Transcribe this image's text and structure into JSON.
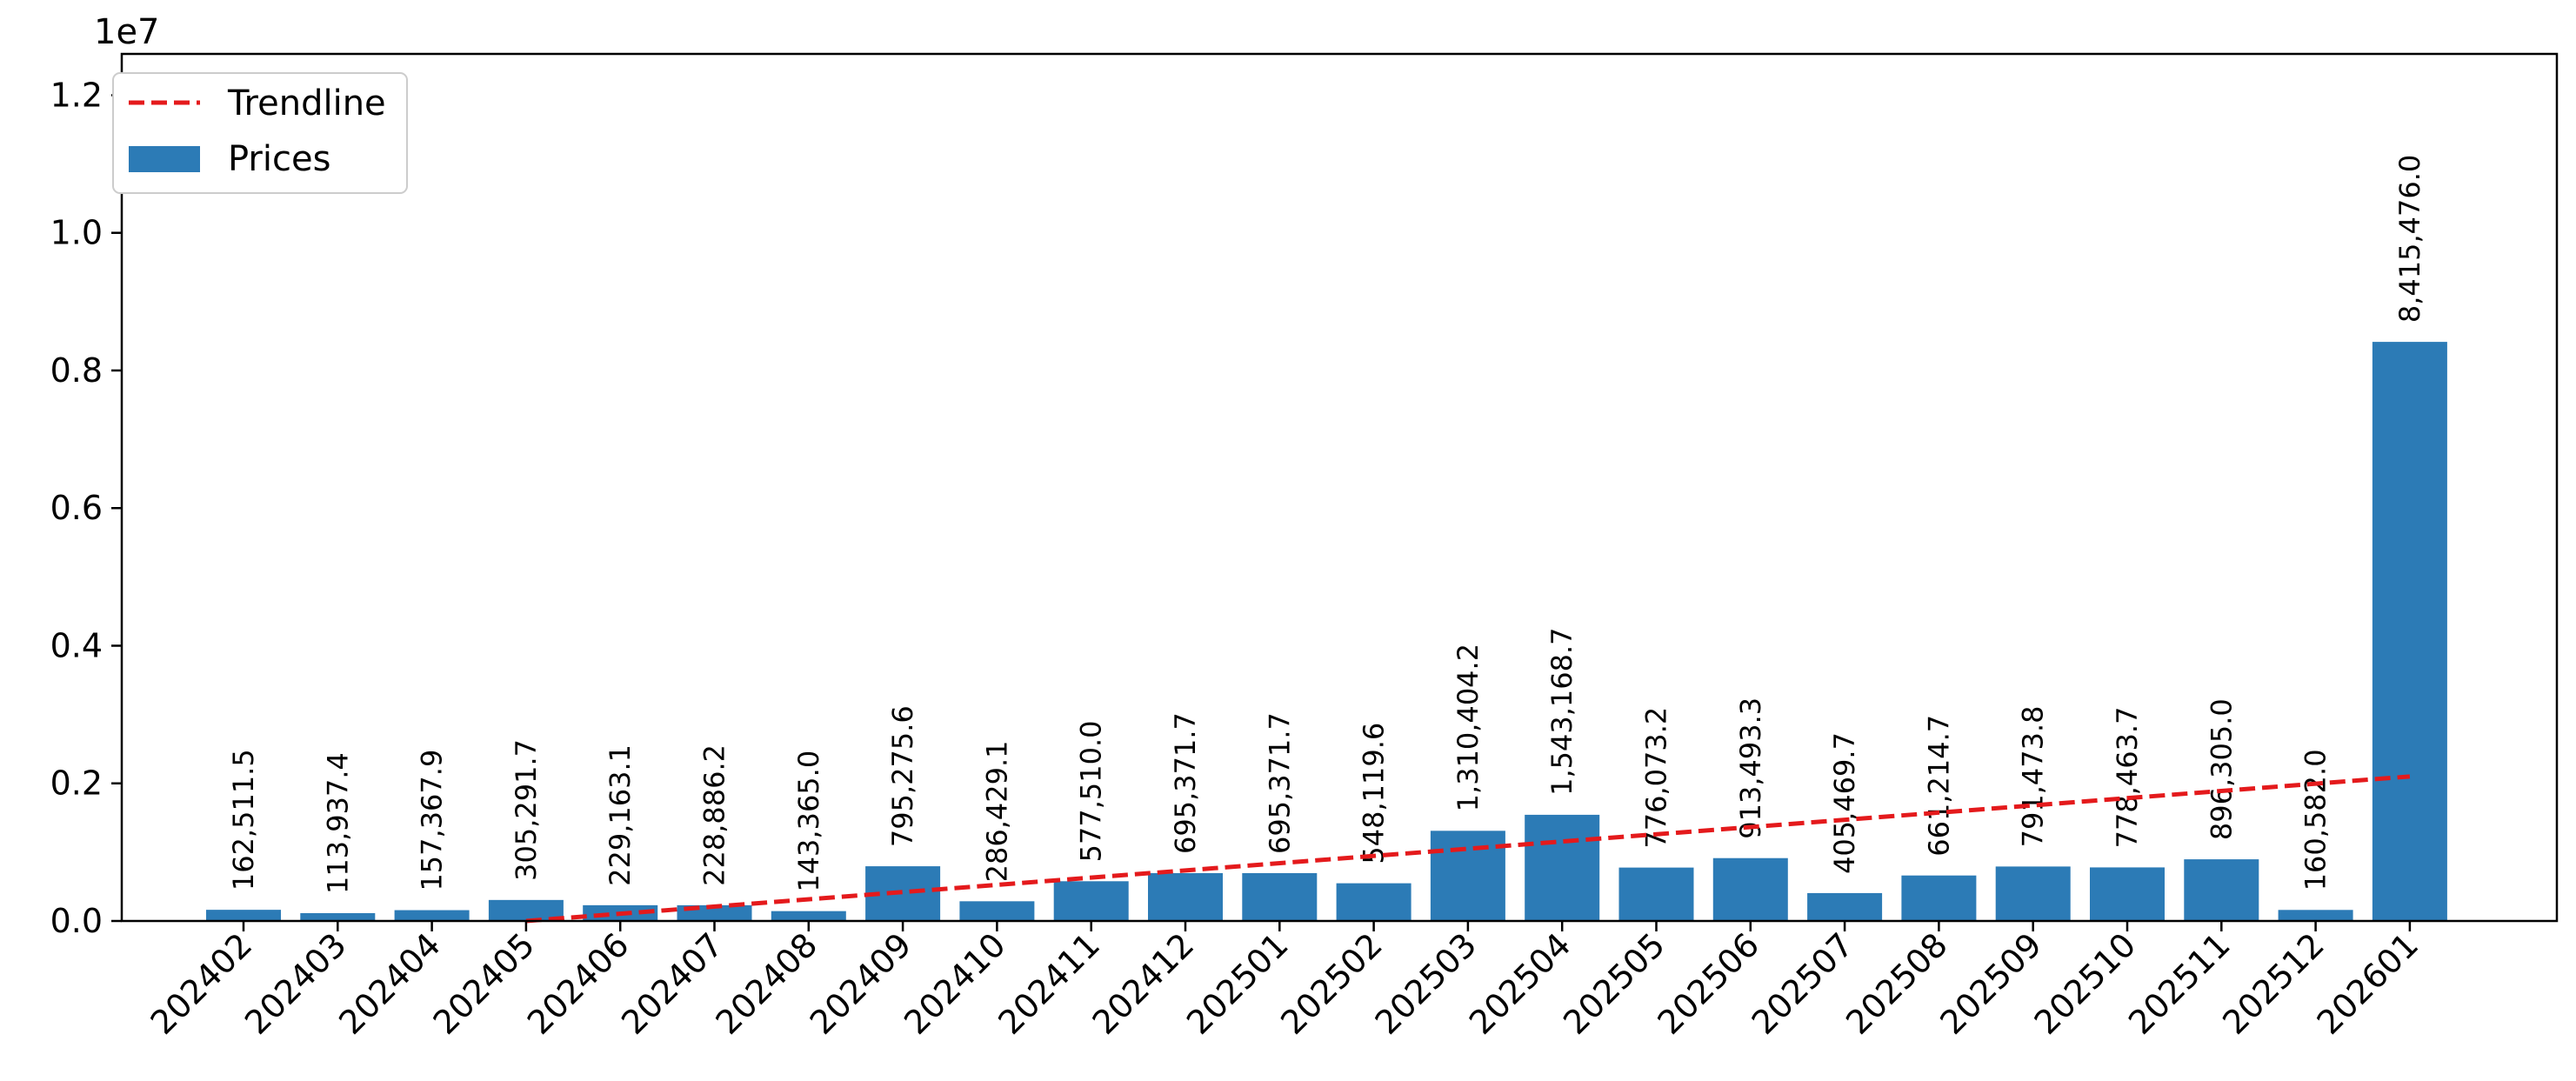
{
  "chart_data": {
    "type": "bar",
    "categories": [
      "202402",
      "202403",
      "202404",
      "202405",
      "202406",
      "202407",
      "202408",
      "202409",
      "202410",
      "202411",
      "202412",
      "202501",
      "202502",
      "202503",
      "202504",
      "202505",
      "202506",
      "202507",
      "202508",
      "202509",
      "202510",
      "202511",
      "202512",
      "202601"
    ],
    "series": [
      {
        "name": "Prices",
        "values": [
          162511.5,
          113937.4,
          157367.9,
          305291.7,
          229163.1,
          228886.2,
          143365.0,
          795275.6,
          286429.1,
          577510.0,
          695371.7,
          695371.7,
          548119.6,
          1310404.2,
          1543168.7,
          776073.2,
          913493.3,
          405469.7,
          661214.7,
          791473.8,
          778463.7,
          896305.0,
          160582.0,
          8415476.0
        ],
        "value_labels": [
          "162,511.5",
          "113,937.4",
          "157,367.9",
          "305,291.7",
          "229,163.1",
          "228,886.2",
          "143,365.0",
          "795,275.6",
          "286,429.1",
          "577,510.0",
          "695,371.7",
          "695,371.7",
          "548,119.6",
          "1,310,404.2",
          "1,543,168.7",
          "776,073.2",
          "913,493.3",
          "405,469.7",
          "661,214.7",
          "791,473.8",
          "778,463.7",
          "896,305.0",
          "160,582.0",
          "8,415,476.0"
        ],
        "color": "#2c7bb6"
      },
      {
        "name": "Trendline",
        "type": "line",
        "style": "dashed",
        "color": "#e41a1c",
        "start": {
          "x": "202405",
          "y": 0
        },
        "end": {
          "x": "202601",
          "y": 2100000
        }
      }
    ],
    "y_ticks": [
      "0.0",
      "0.2",
      "0.4",
      "0.6",
      "0.8",
      "1.0",
      "1.2"
    ],
    "y_tick_values": [
      0,
      2000000,
      4000000,
      6000000,
      8000000,
      10000000,
      12000000
    ],
    "y_offset_label": "1e7",
    "ylim": [
      0,
      12600000
    ],
    "title": "",
    "xlabel": "",
    "ylabel": "",
    "legend": {
      "placement": "top-left"
    },
    "grid": false
  }
}
